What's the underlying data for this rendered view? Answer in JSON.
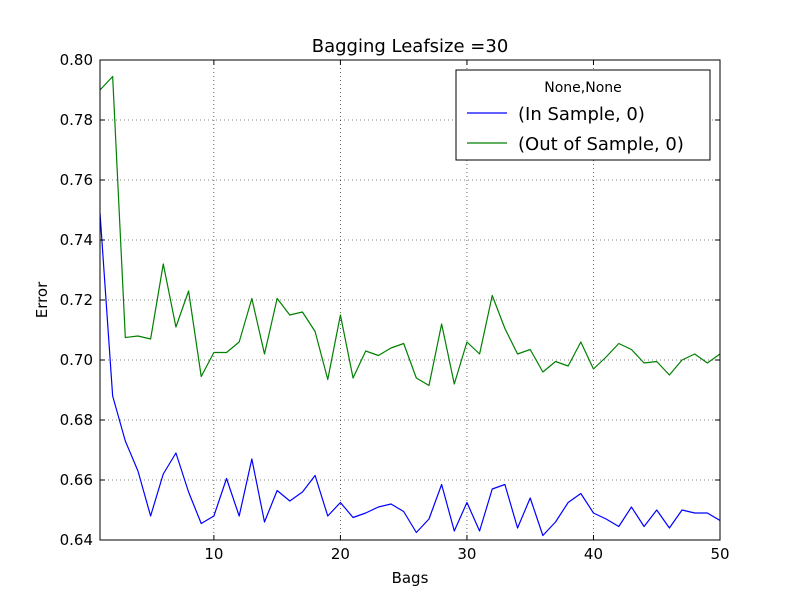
{
  "chart_data": {
    "type": "line",
    "title": "Bagging Leafsize =30",
    "xlabel": "Bags",
    "ylabel": "Error",
    "xlim": [
      1,
      50
    ],
    "ylim": [
      0.64,
      0.8
    ],
    "x_ticks": [
      10,
      20,
      30,
      40,
      50
    ],
    "y_ticks": [
      0.64,
      0.66,
      0.68,
      0.7,
      0.72,
      0.74,
      0.76,
      0.78,
      0.8
    ],
    "x_tick_labels": [
      "10",
      "20",
      "30",
      "40",
      "50"
    ],
    "y_tick_labels": [
      "0.64",
      "0.66",
      "0.68",
      "0.70",
      "0.72",
      "0.74",
      "0.76",
      "0.78",
      "0.80"
    ],
    "grid": true,
    "legend": {
      "title": "None,None",
      "position": "top-right"
    },
    "x": [
      1,
      2,
      3,
      4,
      5,
      6,
      7,
      8,
      9,
      10,
      11,
      12,
      13,
      14,
      15,
      16,
      17,
      18,
      19,
      20,
      21,
      22,
      23,
      24,
      25,
      26,
      27,
      28,
      29,
      30,
      31,
      32,
      33,
      34,
      35,
      36,
      37,
      38,
      39,
      40,
      41,
      42,
      43,
      44,
      45,
      46,
      47,
      48,
      49,
      50
    ],
    "series": [
      {
        "name": "(In Sample, 0)",
        "color": "#0000ff",
        "values": [
          0.749,
          0.688,
          0.673,
          0.663,
          0.648,
          0.662,
          0.669,
          0.656,
          0.6455,
          0.648,
          0.6605,
          0.648,
          0.667,
          0.646,
          0.6565,
          0.653,
          0.656,
          0.6615,
          0.648,
          0.6525,
          0.6475,
          0.649,
          0.651,
          0.652,
          0.6495,
          0.6425,
          0.647,
          0.6585,
          0.643,
          0.6525,
          0.643,
          0.657,
          0.6585,
          0.644,
          0.654,
          0.6415,
          0.646,
          0.6525,
          0.6555,
          0.649,
          0.647,
          0.6445,
          0.651,
          0.6445,
          0.65,
          0.644,
          0.65,
          0.649,
          0.649,
          0.6465
        ]
      },
      {
        "name": "(Out of Sample, 0)",
        "color": "#008000",
        "values": [
          0.79,
          0.7945,
          0.7075,
          0.708,
          0.707,
          0.732,
          0.711,
          0.723,
          0.6945,
          0.7025,
          0.7025,
          0.706,
          0.7205,
          0.702,
          0.7205,
          0.715,
          0.716,
          0.7095,
          0.6935,
          0.715,
          0.694,
          0.703,
          0.7015,
          0.704,
          0.7055,
          0.694,
          0.6915,
          0.712,
          0.692,
          0.706,
          0.702,
          0.7215,
          0.7105,
          0.702,
          0.7035,
          0.696,
          0.6995,
          0.698,
          0.706,
          0.697,
          0.701,
          0.7055,
          0.7035,
          0.699,
          0.6995,
          0.695,
          0.7,
          0.702,
          0.699,
          0.702
        ]
      }
    ]
  }
}
